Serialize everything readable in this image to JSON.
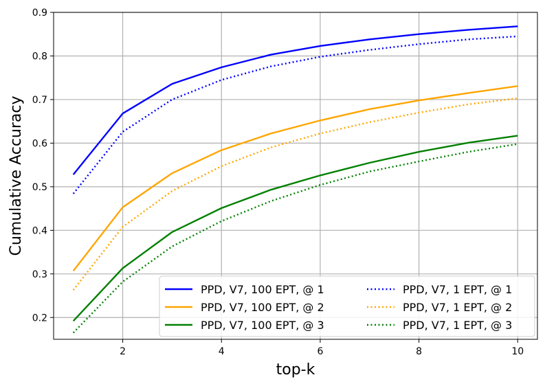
{
  "chart_data": {
    "type": "line",
    "xlabel": "top-k",
    "ylabel": "Cumulative Accuracy",
    "xlim": [
      0.6,
      10.4
    ],
    "ylim": [
      0.15,
      0.9
    ],
    "x_ticks": [
      2,
      4,
      6,
      8,
      10
    ],
    "y_ticks": [
      0.2,
      0.3,
      0.4,
      0.5,
      0.6,
      0.7,
      0.8,
      0.9
    ],
    "grid": true,
    "legend_placement": "lower-right",
    "legend_columns": 2,
    "x": [
      1,
      2,
      3,
      4,
      5,
      6,
      7,
      8,
      9,
      10
    ],
    "series": [
      {
        "name": "PPD, V7, 100 EPT, @ 1",
        "color": "#0000ff",
        "style": "solid",
        "values": [
          0.528,
          0.668,
          0.736,
          0.774,
          0.803,
          0.823,
          0.838,
          0.85,
          0.86,
          0.868
        ]
      },
      {
        "name": "PPD, V7, 100 EPT, @ 2",
        "color": "#ffa500",
        "style": "solid",
        "values": [
          0.307,
          0.453,
          0.531,
          0.584,
          0.622,
          0.652,
          0.678,
          0.698,
          0.715,
          0.731
        ]
      },
      {
        "name": "PPD, V7, 100 EPT, @ 3",
        "color": "#008000",
        "style": "solid",
        "values": [
          0.192,
          0.313,
          0.396,
          0.451,
          0.493,
          0.526,
          0.555,
          0.58,
          0.601,
          0.617
        ]
      },
      {
        "name": "PPD, V7, 1 EPT, @ 1",
        "color": "#0000ff",
        "style": "dotted",
        "values": [
          0.484,
          0.626,
          0.7,
          0.745,
          0.776,
          0.798,
          0.814,
          0.827,
          0.838,
          0.845
        ]
      },
      {
        "name": "PPD, V7, 1 EPT, @ 2",
        "color": "#ffa500",
        "style": "dotted",
        "values": [
          0.263,
          0.408,
          0.49,
          0.547,
          0.59,
          0.622,
          0.648,
          0.67,
          0.689,
          0.703
        ]
      },
      {
        "name": "PPD, V7, 1 EPT, @ 3",
        "color": "#008000",
        "style": "dotted",
        "values": [
          0.165,
          0.282,
          0.363,
          0.421,
          0.467,
          0.504,
          0.535,
          0.558,
          0.58,
          0.598
        ]
      }
    ]
  }
}
